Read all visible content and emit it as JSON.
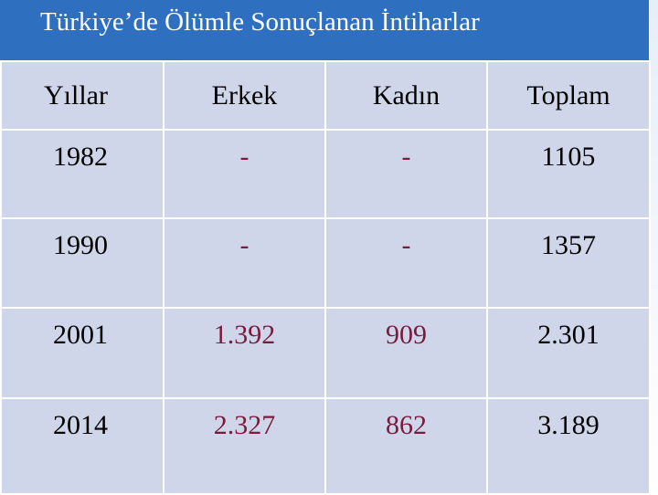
{
  "header": {
    "title": "Türkiye’de Ölümle Sonuçlanan İntiharlar"
  },
  "table": {
    "columns": [
      "Yıllar",
      "Erkek",
      "Kadın",
      "Toplam"
    ],
    "rows": [
      [
        "1982",
        "-",
        "-",
        "1105"
      ],
      [
        "1990",
        "-",
        "-",
        "1357"
      ],
      [
        "2001",
        "1.392",
        "909",
        "2.301"
      ],
      [
        "2014",
        "2.327",
        "862",
        "3.189"
      ]
    ]
  }
}
